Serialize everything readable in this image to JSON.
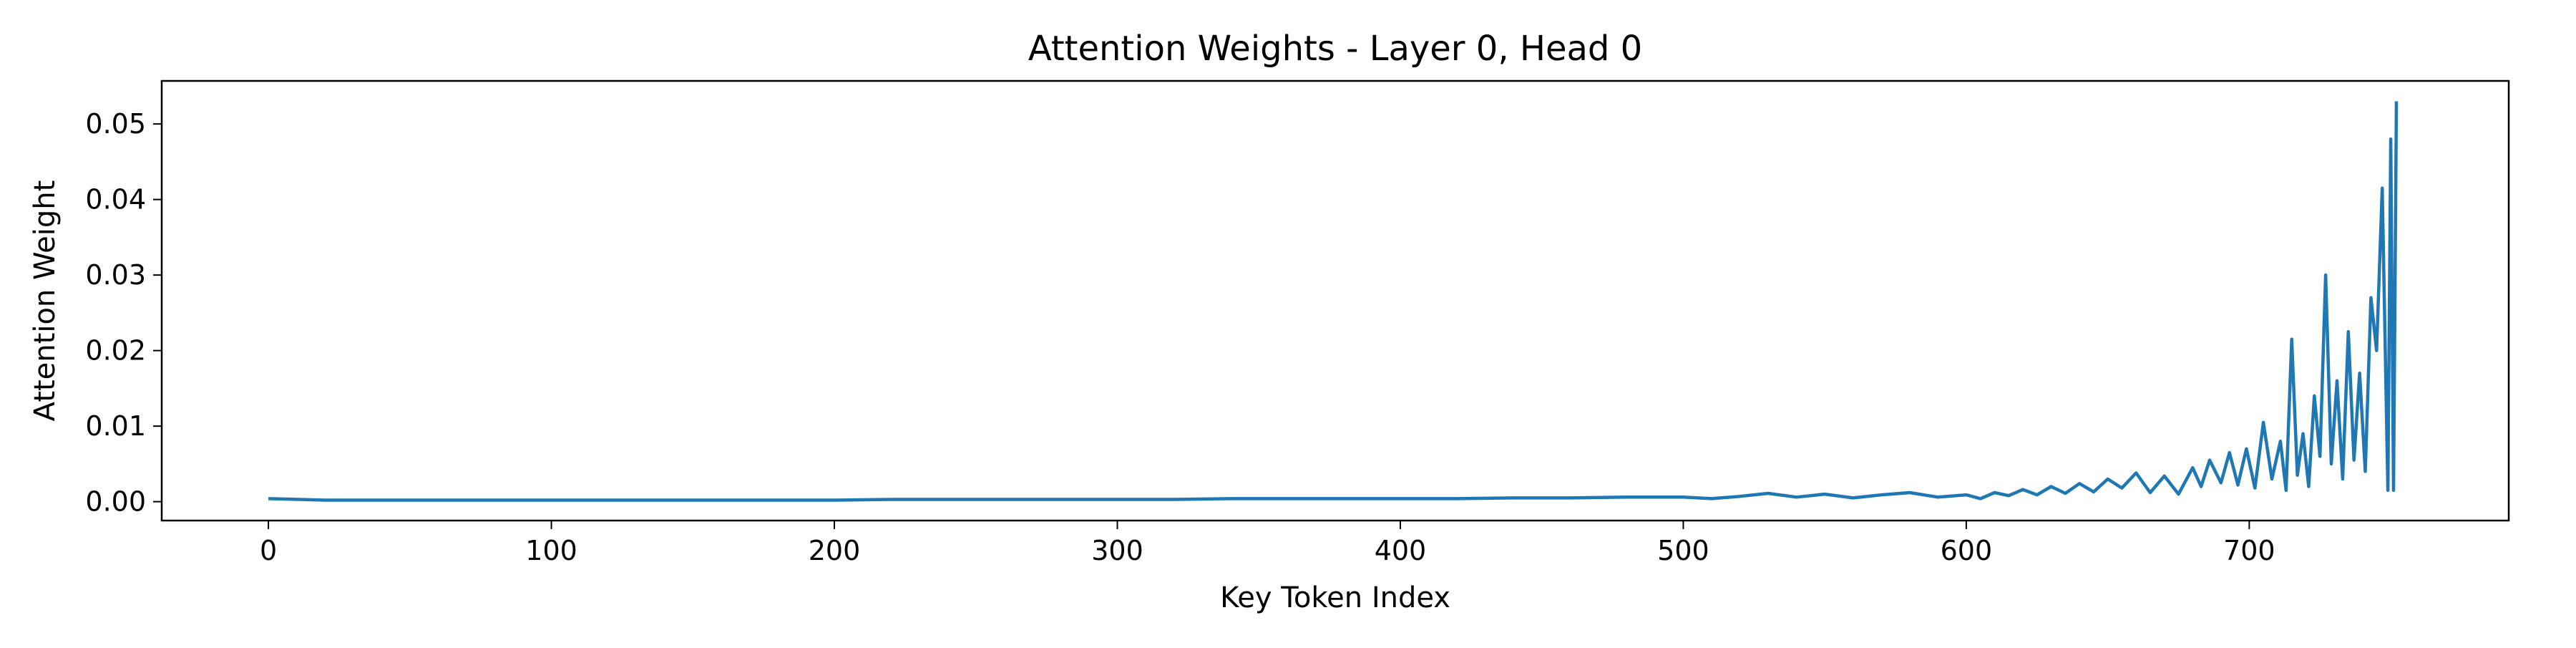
{
  "chart_data": {
    "type": "line",
    "title": "Attention Weights - Layer 0, Head 0",
    "xlabel": "Key Token Index",
    "ylabel": "Attention Weight",
    "xlim": [
      -37.7,
      791.7
    ],
    "ylim": [
      -0.0025,
      0.0557
    ],
    "xticks": [
      0,
      100,
      200,
      300,
      400,
      500,
      600,
      700
    ],
    "xtick_labels": [
      "0",
      "100",
      "200",
      "300",
      "400",
      "500",
      "600",
      "700"
    ],
    "yticks": [
      0.0,
      0.01,
      0.02,
      0.03,
      0.04,
      0.05
    ],
    "ytick_labels": [
      "0.00",
      "0.01",
      "0.02",
      "0.03",
      "0.04",
      "0.05"
    ],
    "grid": false,
    "legend": "none",
    "series": [
      {
        "color": "#1f77b4",
        "x": [
          0,
          20,
          40,
          60,
          80,
          100,
          120,
          140,
          160,
          180,
          200,
          220,
          240,
          260,
          280,
          300,
          320,
          340,
          360,
          380,
          400,
          420,
          440,
          460,
          480,
          500,
          510,
          520,
          530,
          540,
          550,
          560,
          570,
          580,
          590,
          600,
          605,
          610,
          615,
          620,
          625,
          630,
          635,
          640,
          645,
          650,
          655,
          660,
          665,
          670,
          675,
          680,
          683,
          686,
          690,
          693,
          696,
          699,
          702,
          705,
          708,
          711,
          713,
          715,
          717,
          719,
          721,
          723,
          725,
          727,
          729,
          731,
          733,
          735,
          737,
          739,
          741,
          743,
          745,
          747,
          749,
          750,
          751,
          752
        ],
        "values": [
          0.0004,
          0.0002,
          0.0002,
          0.0002,
          0.0002,
          0.0002,
          0.0002,
          0.0002,
          0.0002,
          0.0002,
          0.0002,
          0.0003,
          0.0003,
          0.0003,
          0.0003,
          0.0003,
          0.0003,
          0.0004,
          0.0004,
          0.0004,
          0.0004,
          0.0004,
          0.0005,
          0.0005,
          0.0006,
          0.0006,
          0.0004,
          0.0007,
          0.0011,
          0.0006,
          0.001,
          0.0005,
          0.0009,
          0.0012,
          0.0006,
          0.0009,
          0.0004,
          0.0012,
          0.0008,
          0.0016,
          0.0009,
          0.002,
          0.0011,
          0.0024,
          0.0013,
          0.003,
          0.0018,
          0.0038,
          0.0012,
          0.0034,
          0.001,
          0.0045,
          0.002,
          0.0055,
          0.0025,
          0.0065,
          0.0022,
          0.007,
          0.0018,
          0.0105,
          0.003,
          0.008,
          0.0015,
          0.0215,
          0.0035,
          0.009,
          0.002,
          0.014,
          0.006,
          0.03,
          0.005,
          0.016,
          0.003,
          0.0225,
          0.0055,
          0.017,
          0.004,
          0.027,
          0.02,
          0.0415,
          0.0015,
          0.048,
          0.0015,
          0.053
        ]
      }
    ]
  }
}
